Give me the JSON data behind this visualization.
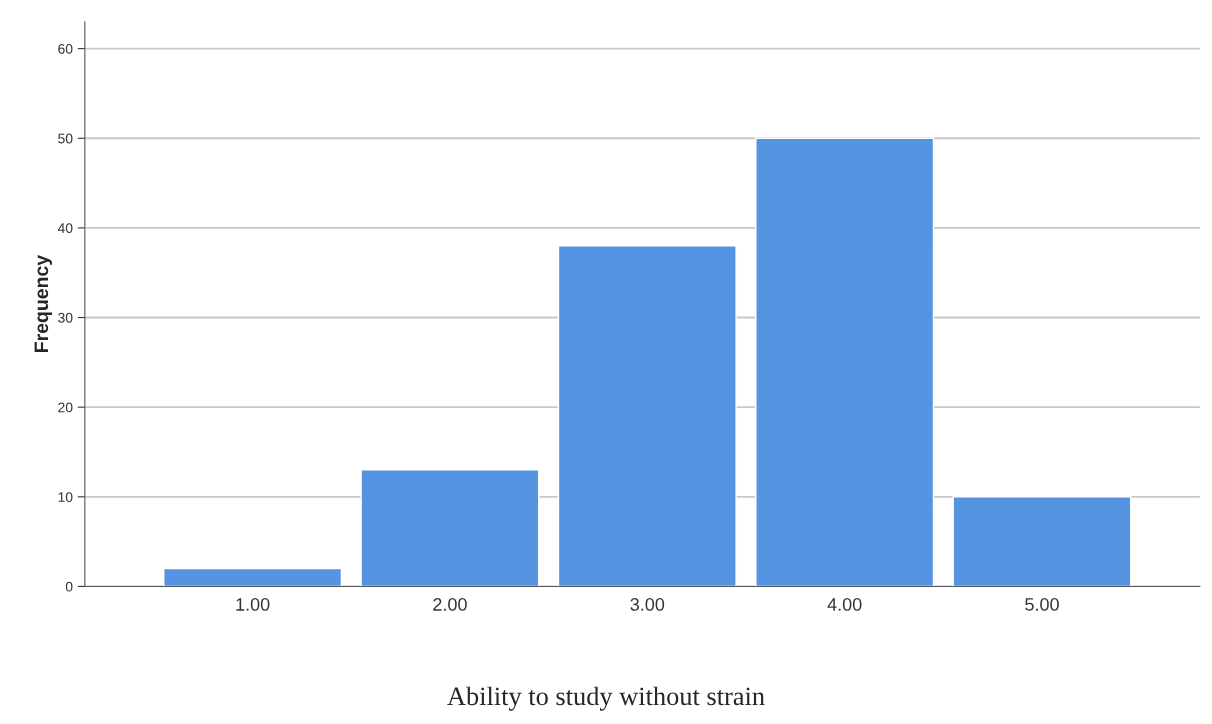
{
  "chart_data": {
    "type": "bar",
    "title": "Ability to study without strain",
    "ylabel": "Frequency",
    "categories": [
      "1.00",
      "2.00",
      "3.00",
      "4.00",
      "5.00"
    ],
    "values": [
      2,
      13,
      38,
      50,
      10
    ],
    "color": "#5594e2",
    "ylim": [
      0,
      63
    ],
    "yticks": [
      0,
      10,
      20,
      30,
      40,
      50,
      60
    ],
    "grid": "y",
    "legend": false
  }
}
